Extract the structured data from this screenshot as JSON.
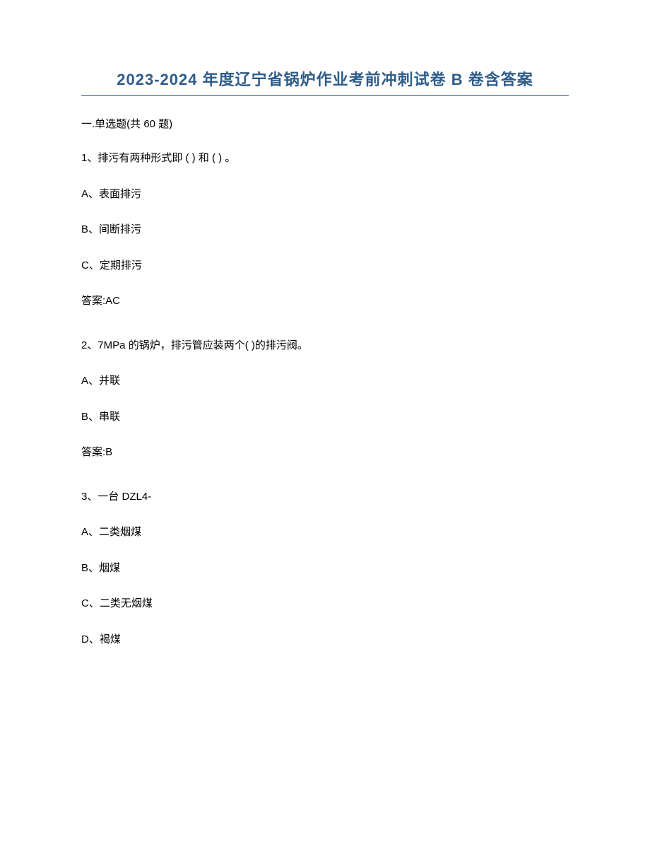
{
  "document": {
    "title": "2023-2024 年度辽宁省锅炉作业考前冲刺试卷 B 卷含答案",
    "section_header": "一.单选题(共 60 题)",
    "questions": [
      {
        "number_text": "1、排污有两种形式即 ( ) 和 ( ) 。",
        "options": [
          "A、表面排污",
          "B、间断排污",
          "C、定期排污"
        ],
        "answer": "答案:AC"
      },
      {
        "number_text": "2、7MPa 的锅炉，排污管应装两个( )的排污阀。",
        "options": [
          "A、并联",
          "B、串联"
        ],
        "answer": "答案:B"
      },
      {
        "number_text": "3、一台 DZL4-",
        "options": [
          "A、二类烟煤",
          "B、烟煤",
          "C、二类无烟煤",
          "D、褐煤"
        ],
        "answer": ""
      }
    ]
  }
}
